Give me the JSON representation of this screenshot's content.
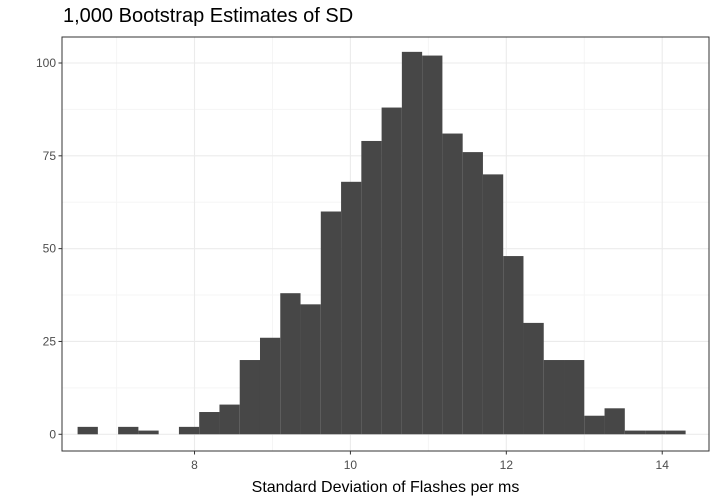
{
  "chart_data": {
    "type": "bar",
    "title": "1,000 Bootstrap Estimates of SD",
    "xlabel": "Standard Deviation of Flashes per ms",
    "ylabel": "",
    "xlim": [
      6.3,
      14.6
    ],
    "ylim": [
      -4.5,
      107
    ],
    "xticks": [
      8,
      10,
      12,
      14
    ],
    "yticks": [
      0,
      25,
      50,
      75,
      100
    ],
    "grid": true,
    "bin_width": 0.26,
    "bins": [
      {
        "x0": 6.5,
        "count": 2
      },
      {
        "x0": 6.76,
        "count": 0
      },
      {
        "x0": 7.02,
        "count": 2
      },
      {
        "x0": 7.28,
        "count": 1
      },
      {
        "x0": 7.54,
        "count": 0
      },
      {
        "x0": 7.8,
        "count": 2
      },
      {
        "x0": 8.06,
        "count": 6
      },
      {
        "x0": 8.32,
        "count": 8
      },
      {
        "x0": 8.58,
        "count": 20
      },
      {
        "x0": 8.84,
        "count": 26
      },
      {
        "x0": 9.1,
        "count": 38
      },
      {
        "x0": 9.36,
        "count": 35
      },
      {
        "x0": 9.62,
        "count": 60
      },
      {
        "x0": 9.88,
        "count": 68
      },
      {
        "x0": 10.14,
        "count": 79
      },
      {
        "x0": 10.4,
        "count": 88
      },
      {
        "x0": 10.66,
        "count": 103
      },
      {
        "x0": 10.92,
        "count": 102
      },
      {
        "x0": 11.18,
        "count": 81
      },
      {
        "x0": 11.44,
        "count": 76
      },
      {
        "x0": 11.7,
        "count": 70
      },
      {
        "x0": 11.96,
        "count": 48
      },
      {
        "x0": 12.22,
        "count": 30
      },
      {
        "x0": 12.48,
        "count": 20
      },
      {
        "x0": 12.74,
        "count": 20
      },
      {
        "x0": 13.0,
        "count": 5
      },
      {
        "x0": 13.26,
        "count": 7
      },
      {
        "x0": 13.52,
        "count": 1
      },
      {
        "x0": 13.78,
        "count": 1
      },
      {
        "x0": 14.04,
        "count": 1
      }
    ],
    "colors": {
      "bar": "#474747",
      "panel_border": "#333333",
      "grid_major": "#ebebeb",
      "grid_minor": "#f5f5f5"
    }
  }
}
